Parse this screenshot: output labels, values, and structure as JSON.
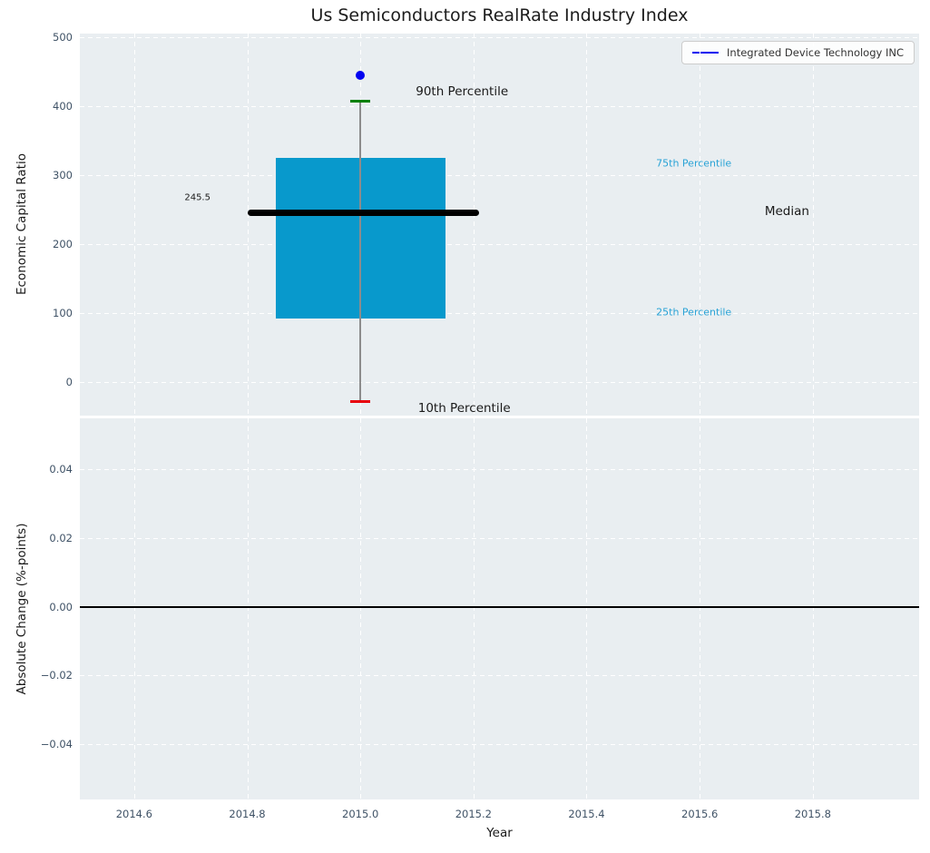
{
  "page_title": "Us Semiconductors RealRate Industry Index",
  "legend": {
    "label": "Integrated Device Technology INC",
    "line_color": "#0202f0"
  },
  "colors": {
    "plot_bg": "#e9eef1",
    "grid": "#ffffff",
    "tick_label": "#3f5266",
    "box_fill": "#0899cc",
    "median_line": "#000000",
    "whisker": "#8c8c8c",
    "p90_cap": "#008000",
    "p10_cap": "#e8000b",
    "company_dot": "#0202f0",
    "zero_line": "#000000",
    "annotation_blue": "#29a3d6",
    "annotation_black": "#1a1a1a"
  },
  "chart_data": [
    {
      "type": "box",
      "title": "Us Semiconductors RealRate Industry Index",
      "ylabel": "Economic Capital Ratio",
      "xlim": [
        2014.504,
        2015.988
      ],
      "ylim": [
        -49,
        505
      ],
      "grid": "white dashed, on",
      "legend_position": "upper right",
      "xtick_values": [
        2014.6,
        2014.8,
        2015.0,
        2015.2,
        2015.4,
        2015.6,
        2015.8
      ],
      "ytick_values": [
        0,
        100,
        200,
        300,
        400,
        500
      ],
      "ytick_labels": [
        "0",
        "100",
        "200",
        "300",
        "400",
        "500"
      ],
      "box": {
        "x_center": 2015.0,
        "x_left": 2014.85,
        "x_right": 2015.15,
        "p10": -29,
        "p25": 92,
        "median": 245.5,
        "p75": 325,
        "p90": 407,
        "median_line_x": [
          2014.8,
          2015.21
        ],
        "median_value_label": "245.5"
      },
      "point": {
        "x": 2015.0,
        "y": 444,
        "series": "Integrated Device Technology INC"
      },
      "annotations": [
        {
          "text": "245.5",
          "x": 2014.735,
          "y": 267,
          "align": "right",
          "size": 10,
          "color": "#1a1a1a"
        },
        {
          "text": "90th Percentile",
          "x": 2015.098,
          "y": 421,
          "align": "left",
          "size": 13.5,
          "color": "#1a1a1a"
        },
        {
          "text": "10th Percentile",
          "x": 2015.102,
          "y": -39,
          "align": "left",
          "size": 13.5,
          "color": "#1a1a1a"
        },
        {
          "text": "75th Percentile",
          "x": 2015.523,
          "y": 317,
          "align": "left",
          "size": 11,
          "color": "#29a3d6"
        },
        {
          "text": "25th Percentile",
          "x": 2015.523,
          "y": 101,
          "align": "left",
          "size": 11,
          "color": "#29a3d6"
        },
        {
          "text": "Median",
          "x": 2015.715,
          "y": 247,
          "align": "left",
          "size": 13.5,
          "color": "#1a1a1a"
        }
      ]
    },
    {
      "type": "line",
      "ylabel": "Absolute Change (%-points)",
      "xlabel": "Year",
      "xlim": [
        2014.504,
        2015.988
      ],
      "ylim": [
        -0.0561,
        0.0548
      ],
      "grid": "white dashed, on",
      "xtick_values": [
        2014.6,
        2014.8,
        2015.0,
        2015.2,
        2015.4,
        2015.6,
        2015.8
      ],
      "xtick_labels": [
        "2014.6",
        "2014.8",
        "2015.0",
        "2015.2",
        "2015.4",
        "2015.6",
        "2015.8"
      ],
      "ytick_values": [
        -0.04,
        -0.02,
        0.0,
        0.02,
        0.04
      ],
      "ytick_labels": [
        "−0.04",
        "−0.02",
        "0.00",
        "0.02",
        "0.04"
      ],
      "zero_line_y": 0.0,
      "series": []
    }
  ]
}
